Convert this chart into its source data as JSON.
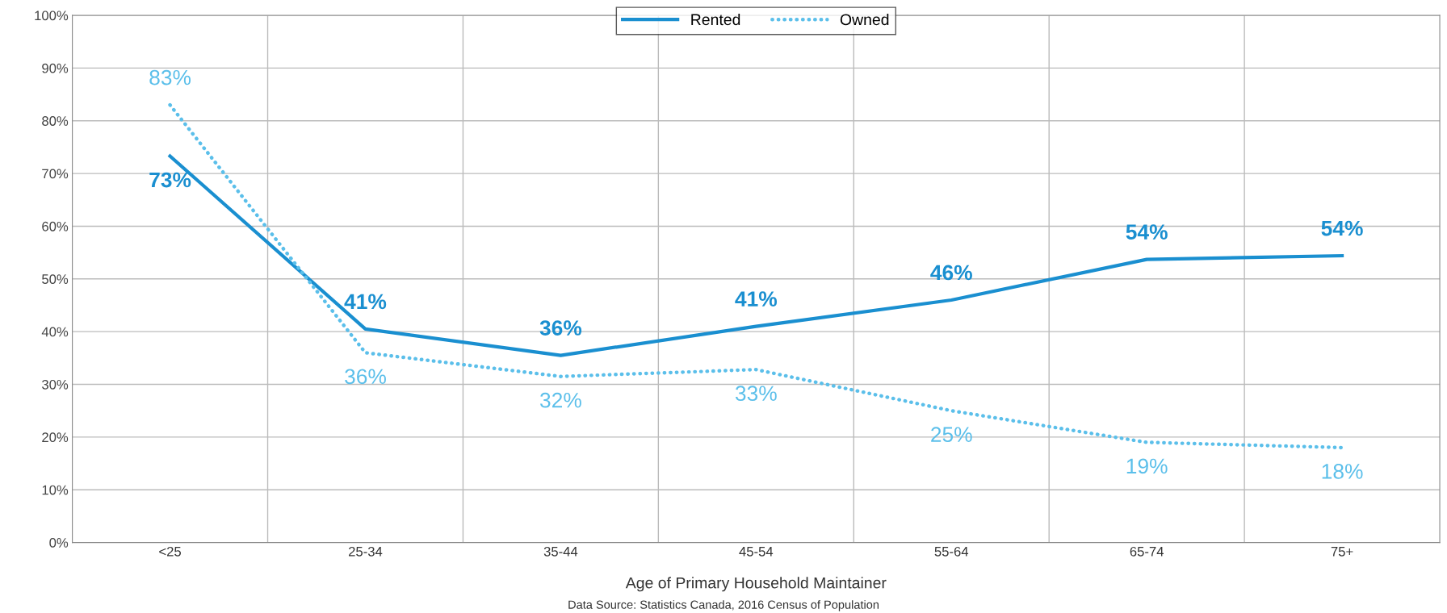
{
  "chart_data": {
    "type": "line",
    "xlabel": "Age of Primary Household Maintainer",
    "annotations": [
      "Data Source: Statistics Canada, 2016 Census of Population"
    ],
    "categories": [
      "<25",
      "25-34",
      "35-44",
      "45-54",
      "55-64",
      "65-74",
      "75+"
    ],
    "series": [
      {
        "name": "Rented",
        "color": "#1a8fd0",
        "line_style": "solid",
        "values": [
          73.3,
          40.5,
          35.5,
          41,
          46,
          53.7,
          54.4
        ],
        "value_labels": [
          "73%",
          "41%",
          "36%",
          "41%",
          "46%",
          "54%",
          "54%"
        ]
      },
      {
        "name": "Owned",
        "color": "#5bbfea",
        "line_style": "dotted",
        "values": [
          83,
          36,
          31.5,
          32.8,
          25,
          19,
          18
        ],
        "value_labels": [
          "83%",
          "36%",
          "32%",
          "33%",
          "25%",
          "19%",
          "18%"
        ]
      }
    ],
    "ylim": [
      0,
      100
    ],
    "yticks": [
      {
        "value": 0,
        "label": "0%"
      },
      {
        "value": 10,
        "label": "10%"
      },
      {
        "value": 20,
        "label": "20%"
      },
      {
        "value": 30,
        "label": "30%"
      },
      {
        "value": 40,
        "label": "40%"
      },
      {
        "value": 50,
        "label": "50%"
      },
      {
        "value": 60,
        "label": "60%"
      },
      {
        "value": 70,
        "label": "70%"
      },
      {
        "value": 80,
        "label": "80%"
      },
      {
        "value": 90,
        "label": "90%"
      },
      {
        "value": 100,
        "label": "100%"
      }
    ],
    "grid": true,
    "legend": "top",
    "marker": "none"
  }
}
